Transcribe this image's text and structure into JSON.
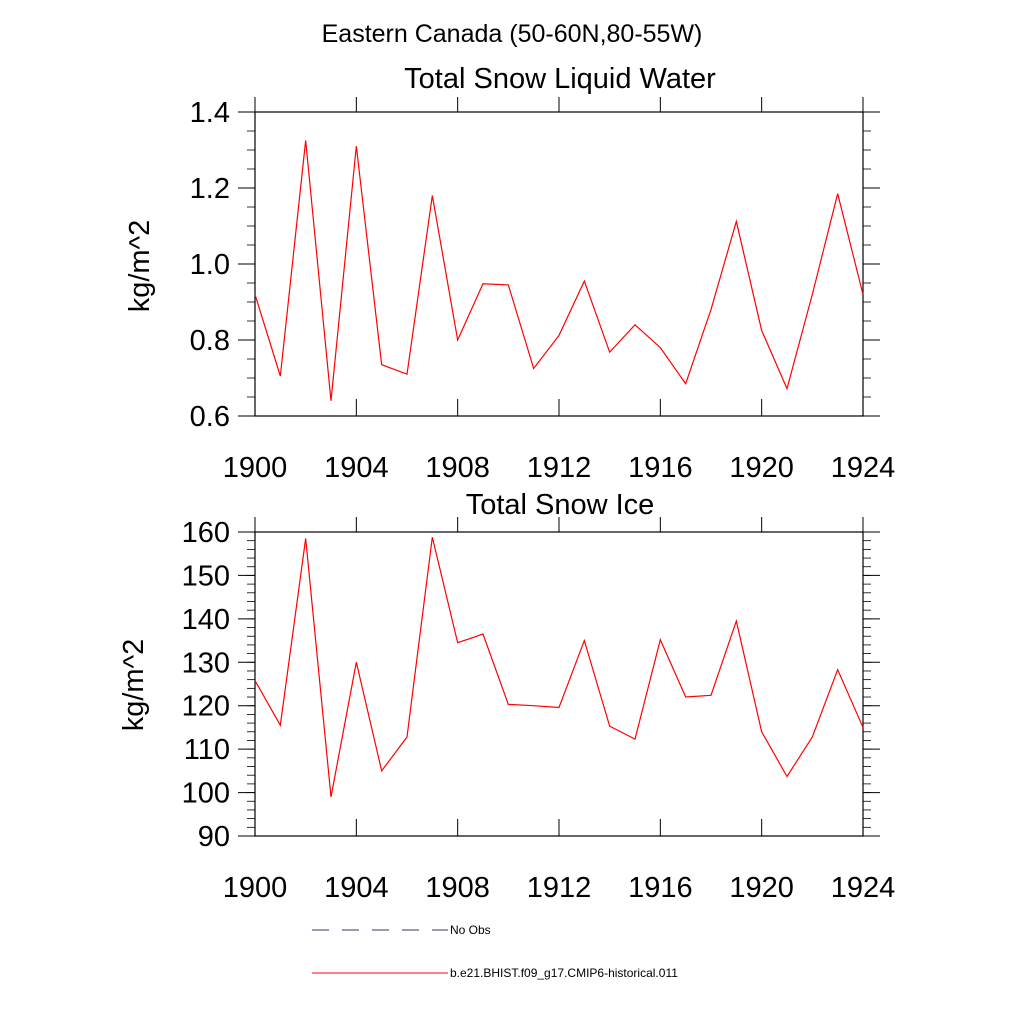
{
  "figure": {
    "title": "Eastern Canada (50-60N,80-55W)",
    "legend": [
      {
        "label": "No Obs",
        "style": "dashed",
        "color": "#333366"
      },
      {
        "label": "b.e21.BHIST.f09_g17.CMIP6-historical.011",
        "style": "solid",
        "color": "#ff0000"
      }
    ]
  },
  "chart_data": [
    {
      "type": "line",
      "title": "Total Snow Liquid Water",
      "xlabel": "",
      "ylabel": "kg/m^2",
      "xlim": [
        1900,
        1924
      ],
      "ylim": [
        0.6,
        1.4
      ],
      "x_ticks": [
        1900,
        1904,
        1908,
        1912,
        1916,
        1920,
        1924
      ],
      "y_ticks": [
        "0.6",
        "0.8",
        "1.0",
        "1.2",
        "1.4"
      ],
      "grid": false,
      "series": [
        {
          "name": "b.e21.BHIST.f09_g17.CMIP6-historical.011",
          "color": "#ff0000",
          "x": [
            1900,
            1901,
            1902,
            1903,
            1904,
            1905,
            1906,
            1907,
            1908,
            1909,
            1910,
            1911,
            1912,
            1913,
            1914,
            1915,
            1916,
            1917,
            1918,
            1919,
            1920,
            1921,
            1922,
            1923,
            1924
          ],
          "values": [
            0.92,
            0.705,
            1.325,
            0.64,
            1.31,
            0.735,
            0.71,
            1.18,
            0.8,
            0.948,
            0.945,
            0.725,
            0.812,
            0.955,
            0.768,
            0.84,
            0.78,
            0.685,
            0.88,
            1.112,
            0.825,
            0.672,
            0.92,
            1.185,
            0.92
          ]
        }
      ]
    },
    {
      "type": "line",
      "title": "Total Snow Ice",
      "xlabel": "",
      "ylabel": "kg/m^2",
      "xlim": [
        1900,
        1924
      ],
      "ylim": [
        90,
        160
      ],
      "x_ticks": [
        1900,
        1904,
        1908,
        1912,
        1916,
        1920,
        1924
      ],
      "y_ticks": [
        "90",
        "100",
        "110",
        "120",
        "130",
        "140",
        "150",
        "160"
      ],
      "grid": false,
      "series": [
        {
          "name": "b.e21.BHIST.f09_g17.CMIP6-historical.011",
          "color": "#ff0000",
          "x": [
            1900,
            1901,
            1902,
            1903,
            1904,
            1905,
            1906,
            1907,
            1908,
            1909,
            1910,
            1911,
            1912,
            1913,
            1914,
            1915,
            1916,
            1917,
            1918,
            1919,
            1920,
            1921,
            1922,
            1923,
            1924
          ],
          "values": [
            125.8,
            115.5,
            158.5,
            99.0,
            130.0,
            105.0,
            112.8,
            158.8,
            134.5,
            136.5,
            120.3,
            120.0,
            119.6,
            135.0,
            115.3,
            112.3,
            135.2,
            122.0,
            122.4,
            139.5,
            114.0,
            103.7,
            112.8,
            128.3,
            115.0
          ]
        }
      ]
    }
  ]
}
